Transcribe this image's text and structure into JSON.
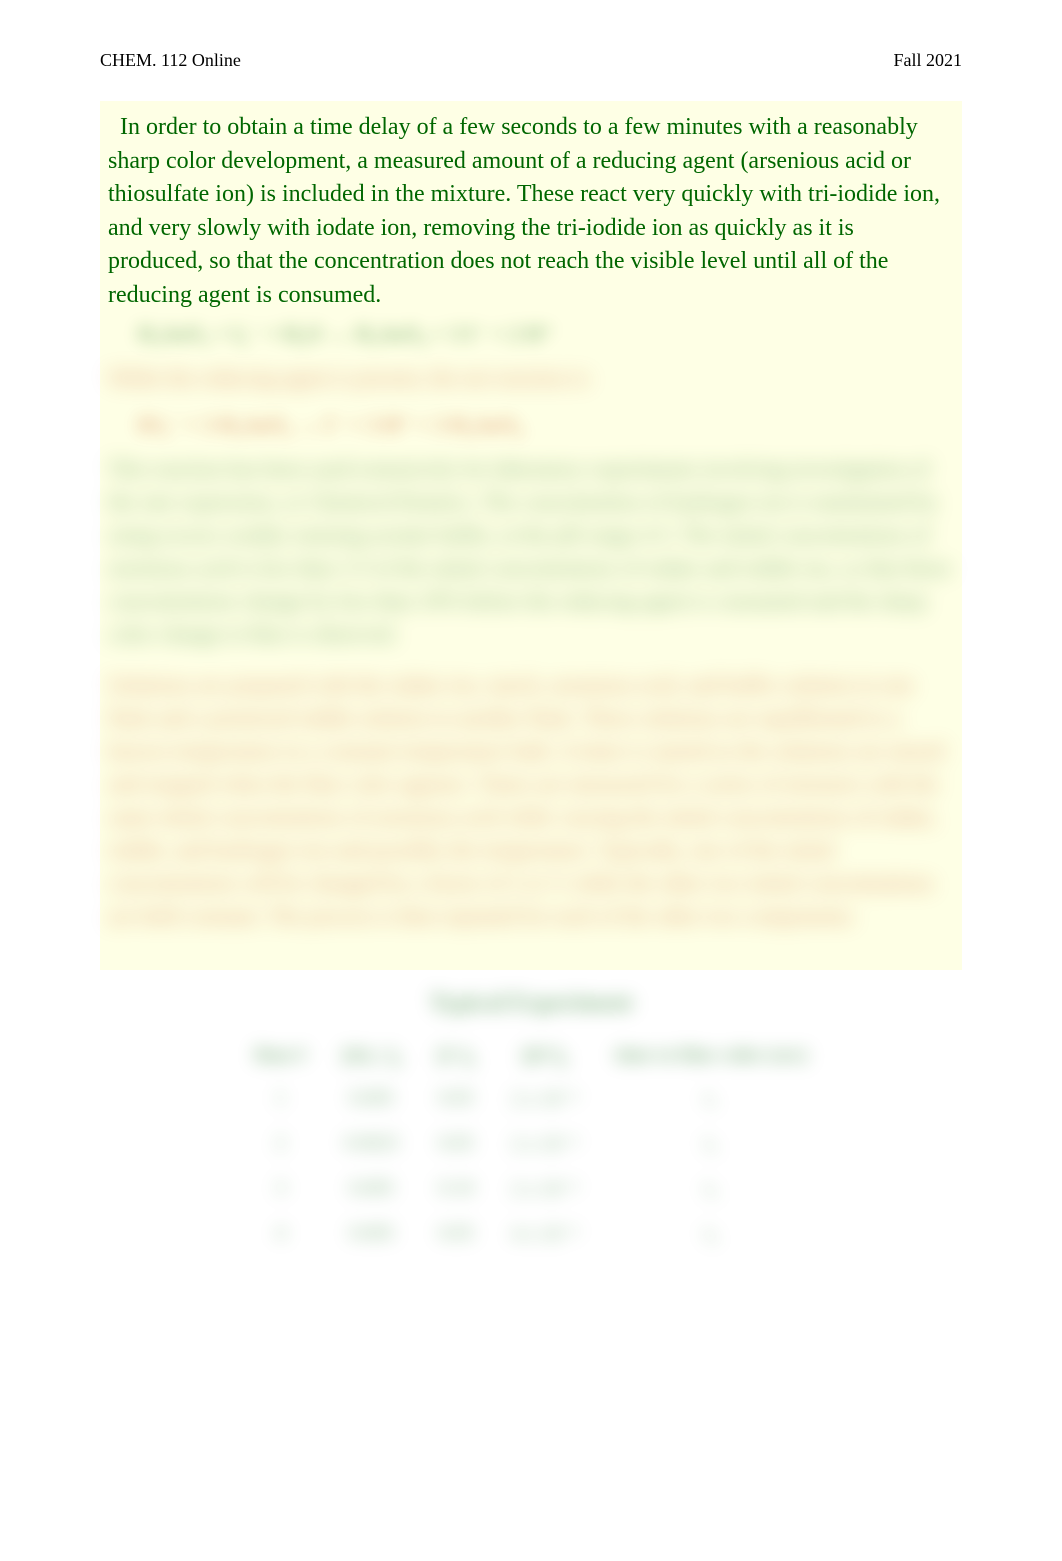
{
  "header": {
    "course": "CHEM. 112 Online",
    "term": "Fall 2021"
  },
  "paragraphs": {
    "clear1": "In order to obtain a time delay of a few seconds to a few minutes with a reasonably sharp color development, a measured amount of a reducing agent (arsenious acid or thiosulfate ion) is included in the mixture. These react very quickly with tri-iodide ion, and very slowly with iodate ion, removing the tri-iodide ion as quickly as it is produced, so that the concentration does not reach the visible level until all of the reducing agent is consumed.",
    "equation1": "H₃AsO₃ + I₃⁻ + H₂O → H₃AsO₄ + 3 I⁻ + 2 H⁺",
    "blur_intro": "While the reducing agent is present, the net reaction is:",
    "equation2": "IO₃⁻ + 3 H₃AsO₃ → I⁻ + 3 H⁺ + 3 H₃AsO₄",
    "blur_para1": "This reaction has been used extensively for laboratory experiments involving investigation of the rate expression, or Chemical Kinetics. The concentration of hydrogen ion is maintained by using excess weakly ionizing acetate buffer, at the pH range 4-5. The initial concentrations of arsenious acid is less than 1/3 of the initial concentrations of iodate and iodide ion, so that those concentrations change by less than 10% before the reducing agent is consumed and the sharp color change to blue is observed.",
    "blur_para2": "Solutions are prepared with the iodate ion, starch, arsenious acid, and buffer solution in one flask and a premixed iodide solution in another flask. These solutions are equilibrated to a known temperature in a constant temperature bath. A timer is started as the solutions are mixed and stopped when the blue color appears. Times are measured for a series of mixtures with the same initial concentrations of arsenious acid while varying the initial concentrations of iodate, iodide, and hydrogen ion and possibly the temperature. Typically, one of the initial concentrations will be changed by a factor of 2 or ½ while the other two initial concentrations are held constant. The process is then repeated for each of the other two components."
  },
  "table": {
    "title": "Typical Experiment",
    "headers": [
      "Run #",
      "[IO₃⁻]₀",
      "[I⁻]₀",
      "[H⁺]₀",
      "time to blue color (sec)"
    ],
    "rows": [
      [
        "1",
        "0.005",
        "0.05",
        "2 x 10⁻⁵",
        "t₁"
      ],
      [
        "2",
        "0.0025",
        "0.05",
        "2 x 10⁻⁵",
        "t₂"
      ],
      [
        "3",
        "0.005",
        "0.10",
        "2 x 10⁻⁵",
        "t₃"
      ],
      [
        "4",
        "0.005",
        "0.05",
        "4 x 10⁻⁵",
        "t₄"
      ]
    ]
  },
  "styles": {
    "page_bg": "#ffffff",
    "box_bg": "#feffe5",
    "text_green": "#006600",
    "text_orange": "#c04000",
    "text_black": "#000000",
    "clear_fontsize": 24,
    "blur_fontsize": 22,
    "header_fontsize": 18,
    "blur_radius": 10
  }
}
